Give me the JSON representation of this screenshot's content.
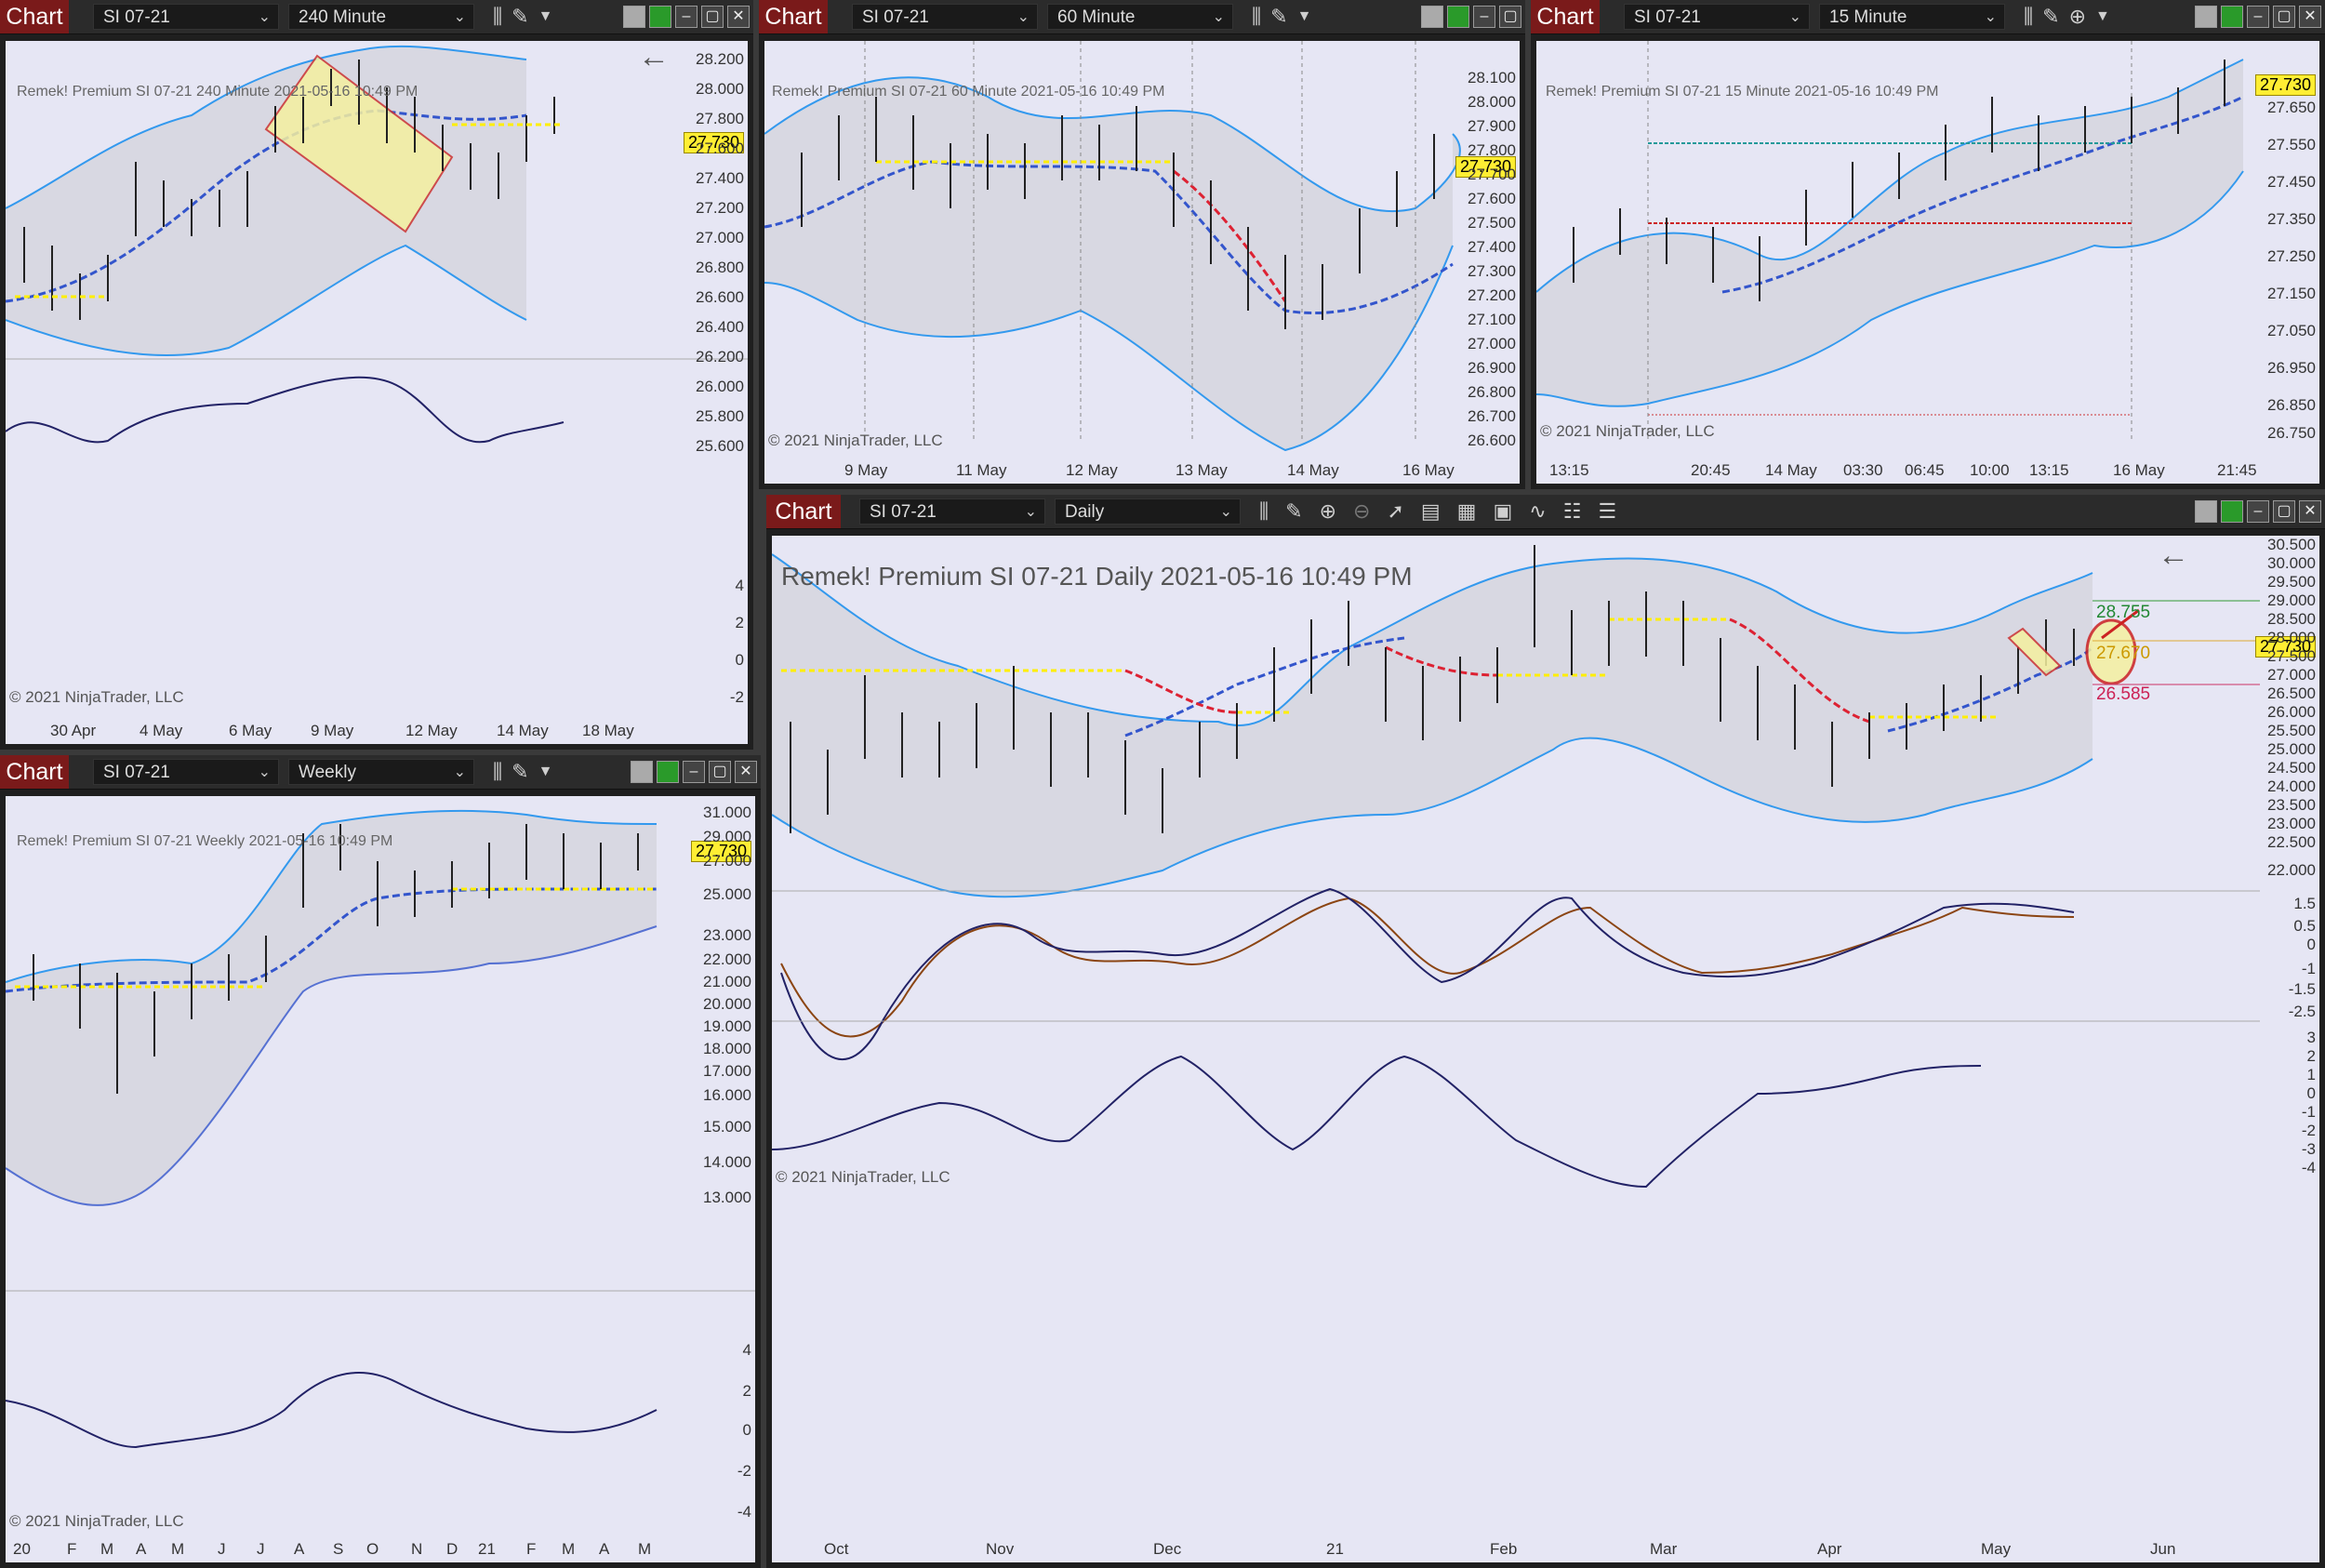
{
  "chart_tab_label": "Chart",
  "copyright": "© 2021 NinjaTrader, LLC",
  "last_price": "27.730",
  "panels": {
    "p240": {
      "instrument": "SI 07-21",
      "interval": "240 Minute",
      "header": "Remek!  Premium  SI 07-21  240 Minute  2021-05-16 10:49 PM",
      "price_ticks": [
        "28.200",
        "28.000",
        "27.800",
        "27.600",
        "27.400",
        "27.200",
        "27.000",
        "26.800",
        "26.600",
        "26.400",
        "26.200",
        "26.000",
        "25.800",
        "25.600"
      ],
      "ind_ticks": [
        "4",
        "2",
        "0",
        "-2"
      ],
      "x_labels": [
        "30 Apr",
        "4 May",
        "6 May",
        "9 May",
        "12 May",
        "14 May",
        "18 May"
      ]
    },
    "p60": {
      "instrument": "SI 07-21",
      "interval": "60 Minute",
      "header": "Remek!  Premium  SI 07-21  60 Minute  2021-05-16 10:49 PM",
      "price_ticks": [
        "28.100",
        "28.000",
        "27.900",
        "27.800",
        "27.700",
        "27.600",
        "27.500",
        "27.400",
        "27.300",
        "27.200",
        "27.100",
        "27.000",
        "26.900",
        "26.800",
        "26.700",
        "26.600"
      ],
      "x_labels": [
        "9 May",
        "11 May",
        "12 May",
        "13 May",
        "14 May",
        "16 May"
      ]
    },
    "p15": {
      "instrument": "SI 07-21",
      "interval": "15 Minute",
      "header": "Remek!  Premium  SI 07-21  15 Minute  2021-05-16 10:49 PM",
      "price_ticks": [
        "27.650",
        "27.550",
        "27.450",
        "27.350",
        "27.250",
        "27.150",
        "27.050",
        "26.950",
        "26.850",
        "26.750"
      ],
      "x_labels": [
        "13:15",
        "20:45",
        "14 May",
        "03:30",
        "06:45",
        "10:00",
        "13:15",
        "16 May",
        "21:45"
      ]
    },
    "pweekly": {
      "instrument": "SI 07-21",
      "interval": "Weekly",
      "header": "Remek!  Premium  SI 07-21  Weekly  2021-05-16 10:49 PM",
      "price_ticks": [
        "31.000",
        "29.000",
        "27.000",
        "25.000",
        "23.000",
        "22.000",
        "21.000",
        "20.000",
        "19.000",
        "18.000",
        "17.000",
        "16.000",
        "15.000",
        "14.000",
        "13.000"
      ],
      "ind_ticks": [
        "4",
        "2",
        "0",
        "-2",
        "-4"
      ],
      "x_labels": [
        "20",
        "F",
        "M",
        "A",
        "M",
        "J",
        "J",
        "A",
        "S",
        "O",
        "N",
        "D",
        "21",
        "F",
        "M",
        "A",
        "M"
      ]
    },
    "pdaily": {
      "instrument": "SI 07-21",
      "interval": "Daily",
      "header": "Remek!  Premium  SI 07-21  Daily  2021-05-16 10:49 PM",
      "price_ticks": [
        "30.500",
        "30.000",
        "29.500",
        "29.000",
        "28.500",
        "28.000",
        "27.500",
        "27.000",
        "26.500",
        "26.000",
        "25.500",
        "25.000",
        "24.500",
        "24.000",
        "23.500",
        "23.000",
        "22.500",
        "22.000"
      ],
      "osc_ticks": [
        "1.5",
        "0.5",
        "0",
        "-1",
        "-1.5",
        "-2.5"
      ],
      "ind_ticks": [
        "3",
        "2",
        "1",
        "0",
        "-1",
        "-2",
        "-3",
        "-4"
      ],
      "x_labels": [
        "Oct",
        "Nov",
        "Dec",
        "21",
        "Feb",
        "Mar",
        "Apr",
        "May",
        "Jun"
      ],
      "target_upper": "28.755",
      "target_mid": "27.670",
      "target_lower": "26.585"
    }
  }
}
